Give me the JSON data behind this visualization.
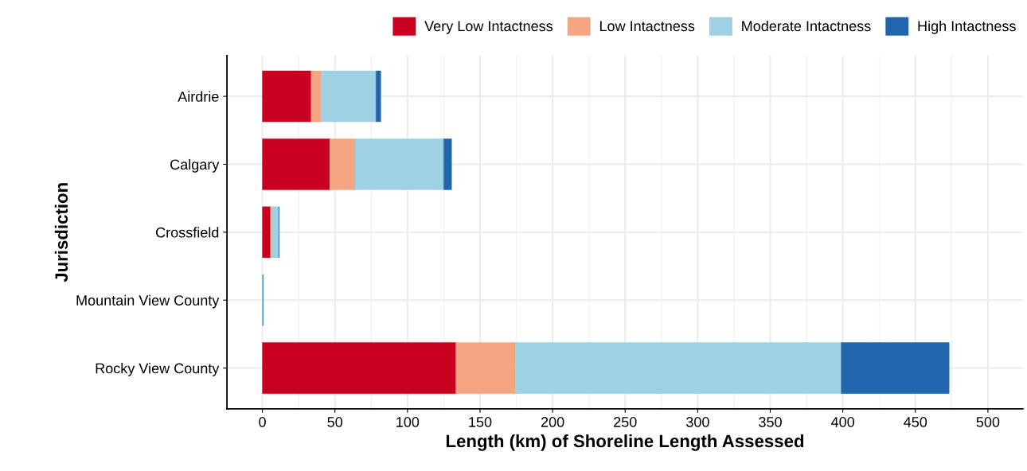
{
  "chart_data": {
    "type": "bar",
    "orientation": "horizontal",
    "stacked": true,
    "xlabel": "Length (km) of Shoreline Length Assessed",
    "ylabel": "Jurisdiction",
    "categories": [
      "Airdrie",
      "Calgary",
      "Crossfield",
      "Mountain View County",
      "Rocky View County"
    ],
    "series": [
      {
        "name": "Very Low Intactness",
        "color": "#ca0020",
        "values": [
          33.6,
          46.5,
          5.6,
          0,
          133.4
        ]
      },
      {
        "name": "Low Intactness",
        "color": "#f4a582",
        "values": [
          6.9,
          17.4,
          0.7,
          0,
          40.9
        ]
      },
      {
        "name": "Moderate Intactness",
        "color": "#9ed1e3",
        "values": [
          37.8,
          61.1,
          5.0,
          0.5,
          224.6
        ]
      },
      {
        "name": "High Intactness",
        "color": "#2166ac",
        "values": [
          3.3,
          5.4,
          0.3,
          0,
          74.4
        ]
      }
    ],
    "xlim": [
      -24.4,
      524.1
    ],
    "xticks": [
      0,
      50,
      100,
      150,
      200,
      250,
      300,
      350,
      400,
      450,
      500
    ],
    "grid": true,
    "legend": "top"
  }
}
